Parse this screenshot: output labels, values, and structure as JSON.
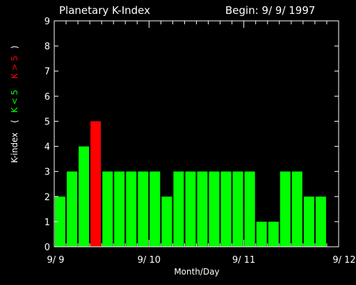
{
  "chart_data": {
    "type": "bar",
    "title": "Planetary K-Index",
    "subtitle": "Begin: 9/ 9/ 1997",
    "xlabel": "Month/Day",
    "ylabel": {
      "prefix": "K-index",
      "open": "(",
      "green_part": "K < 5",
      "red_part": "K > 5",
      "close": ")"
    },
    "ylim": [
      0,
      9
    ],
    "yticks": [
      "0",
      "1",
      "2",
      "3",
      "4",
      "5",
      "6",
      "7",
      "8",
      "9"
    ],
    "x_range_days": [
      0,
      3
    ],
    "xticks": [
      {
        "label": "9/ 9",
        "day": 0
      },
      {
        "label": "9/ 10",
        "day": 1
      },
      {
        "label": "9/ 11",
        "day": 2
      },
      {
        "label": "9/ 12",
        "day": 3
      }
    ],
    "interval_hours": 3,
    "values": [
      2,
      3,
      4,
      5,
      3,
      3,
      3,
      3,
      3,
      2,
      3,
      3,
      3,
      3,
      3,
      3,
      3,
      1,
      1,
      3,
      3,
      2,
      2
    ],
    "threshold": 5,
    "colors": {
      "background": "#000000",
      "axis": "#ffffff",
      "normal_bar": "#00ff00",
      "high_bar": "#ff0000",
      "text": "#ffffff"
    }
  }
}
